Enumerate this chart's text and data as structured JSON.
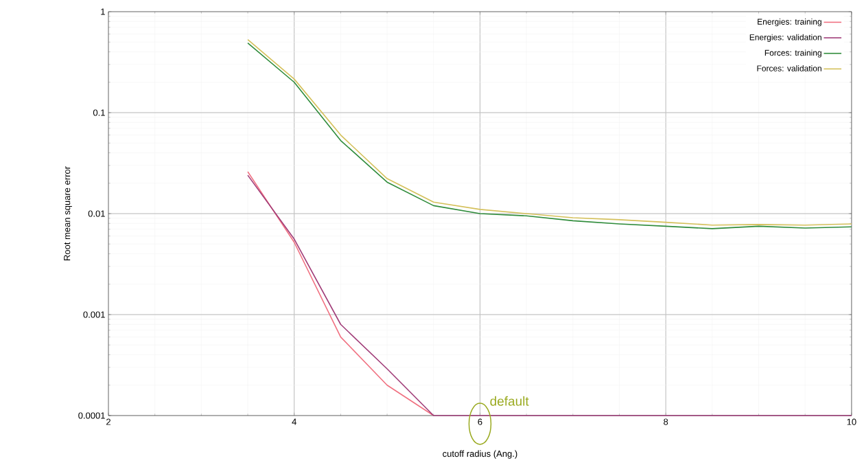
{
  "chart_data": {
    "type": "line",
    "xlabel": "cutoff radius (Ang.)",
    "ylabel": "Root mean square error",
    "log": "y",
    "grid": true,
    "legend": "top right",
    "marker": "none",
    "line_style": "solid",
    "xlim": [
      2,
      10
    ],
    "ylim": [
      0.0001,
      1
    ],
    "xticks": [
      2,
      4,
      6,
      8,
      10
    ],
    "yticks": [
      0.0001,
      0.001,
      0.01,
      0.1,
      1
    ],
    "x": [
      3.5,
      4,
      4.5,
      5,
      5.5,
      6,
      6.5,
      7,
      7.5,
      8,
      8.5,
      9,
      9.5,
      10
    ],
    "series": [
      {
        "name": "Energies: training",
        "color": "#f07080",
        "values": [
          0.026,
          0.0052,
          0.0006,
          0.0002,
          0.0001,
          null,
          null,
          null,
          null,
          null,
          null,
          null,
          null,
          null
        ]
      },
      {
        "name": "Energies: validation",
        "color": "#a03c78",
        "values": [
          0.024,
          0.0056,
          0.0008,
          0.00029,
          0.0001,
          0.0001,
          0.0001,
          0.0001,
          0.0001,
          0.0001,
          0.0001,
          0.0001,
          0.0001,
          0.0001
        ]
      },
      {
        "name": "Forces: training",
        "color": "#2e8b3a",
        "values": [
          0.49,
          0.2,
          0.053,
          0.0205,
          0.012,
          0.01,
          0.0095,
          0.0085,
          0.0079,
          0.0075,
          0.0071,
          0.0075,
          0.0072,
          0.0074
        ]
      },
      {
        "name": "Forces: validation",
        "color": "#d4c05a",
        "values": [
          0.53,
          0.215,
          0.06,
          0.0222,
          0.013,
          0.011,
          0.01,
          0.0091,
          0.0087,
          0.0082,
          0.0077,
          0.0078,
          0.0077,
          0.0079
        ]
      }
    ],
    "annotations": [
      {
        "text": "default",
        "x": 6,
        "y": 0.0001
      }
    ]
  }
}
